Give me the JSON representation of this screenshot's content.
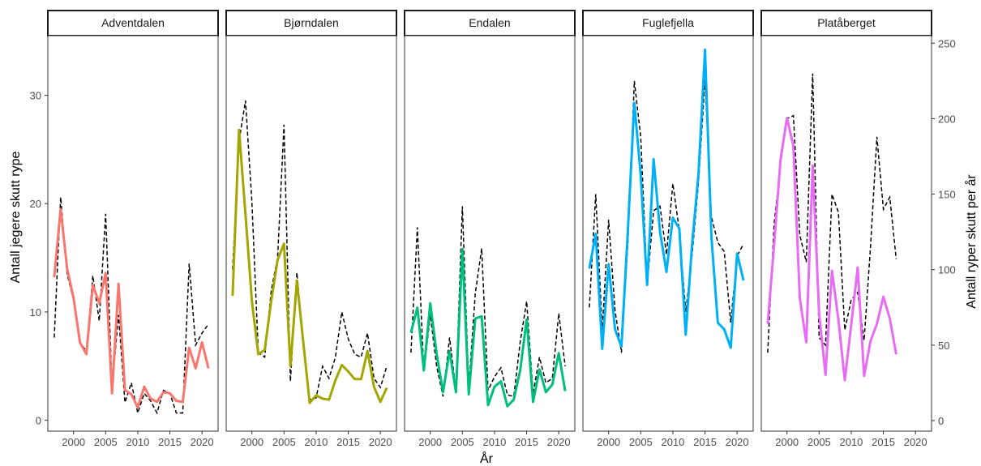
{
  "chart_data": {
    "type": "line",
    "xlabel": "År",
    "ylabel_left": "Antall jegere skutt rype",
    "ylabel_right": "Antall ryper skutt per år",
    "xlim": [
      1996,
      2022.5
    ],
    "x_ticks": [
      2000,
      2005,
      2010,
      2015,
      2020
    ],
    "ylim_left": [
      -1,
      35.5
    ],
    "y_ticks_left": [
      0,
      10,
      20,
      30
    ],
    "ylim_right": [
      -7,
      255
    ],
    "y_ticks_right": [
      0,
      50,
      100,
      150,
      200,
      250
    ],
    "legend": "none",
    "grid": false,
    "line_series_axis": "left",
    "dashed_series_axis": "right",
    "panels": [
      {
        "name": "Adventdalen",
        "color": "#F8766D",
        "hunters": {
          "x": [
            1997,
            1998,
            1999,
            2000,
            2001,
            2002,
            2003,
            2004,
            2005,
            2006,
            2007,
            2008,
            2009,
            2010,
            2011,
            2012,
            2013,
            2014,
            2015,
            2016,
            2017,
            2018,
            2019,
            2020,
            2021
          ],
          "y": [
            13.2,
            19.5,
            14.0,
            11.3,
            7.2,
            6.1,
            12.5,
            10.8,
            13.6,
            2.5,
            12.6,
            2.8,
            2.4,
            1.2,
            3.1,
            2.0,
            1.7,
            2.6,
            2.5,
            1.8,
            1.7,
            6.7,
            4.8,
            7.2,
            4.8
          ]
        },
        "ryper": {
          "x": [
            1997,
            1998,
            1999,
            2000,
            2001,
            2002,
            2003,
            2004,
            2005,
            2006,
            2007,
            2008,
            2009,
            2010,
            2011,
            2012,
            2013,
            2014,
            2015,
            2016,
            2017,
            2018,
            2019,
            2020,
            2021
          ],
          "y": [
            55,
            148,
            97,
            80,
            52,
            46,
            96,
            66,
            137,
            22,
            70,
            12,
            25,
            5,
            18,
            13,
            5,
            20,
            18,
            5,
            5,
            104,
            50,
            58,
            64
          ]
        }
      },
      {
        "name": "Bjørndalen",
        "color": "#A3A500",
        "hunters": {
          "x": [
            1997,
            1998,
            1999,
            2000,
            2001,
            2002,
            2003,
            2004,
            2005,
            2006,
            2007,
            2008,
            2009,
            2010,
            2011,
            2012,
            2013,
            2014,
            2015,
            2016,
            2017,
            2018,
            2019,
            2020,
            2021
          ],
          "y": [
            11.5,
            26.8,
            19.0,
            11.0,
            6.1,
            6.5,
            11.0,
            14.8,
            16.3,
            5.0,
            12.9,
            7.2,
            1.6,
            2.3,
            2.0,
            1.9,
            3.7,
            5.1,
            4.5,
            3.8,
            3.8,
            6.4,
            3.1,
            1.7,
            3.0
          ]
        },
        "ryper": {
          "x": [
            1997,
            1998,
            1999,
            2000,
            2001,
            2002,
            2003,
            2004,
            2005,
            2006,
            2007,
            2008,
            2009,
            2010,
            2011,
            2012,
            2013,
            2014,
            2015,
            2016,
            2017,
            2018,
            2019,
            2020,
            2021
          ],
          "y": [
            100,
            185,
            212,
            145,
            45,
            42,
            86,
            108,
            196,
            26,
            98,
            52,
            14,
            15,
            36,
            28,
            42,
            72,
            54,
            44,
            42,
            58,
            28,
            22,
            36
          ]
        }
      },
      {
        "name": "Endalen",
        "color": "#00BF7D",
        "hunters": {
          "x": [
            1997,
            1998,
            1999,
            2000,
            2001,
            2002,
            2003,
            2004,
            2005,
            2006,
            2007,
            2008,
            2009,
            2010,
            2011,
            2012,
            2013,
            2014,
            2015,
            2016,
            2017,
            2018,
            2019,
            2020,
            2021
          ],
          "y": [
            8.1,
            10.4,
            4.6,
            10.8,
            6.1,
            2.6,
            6.4,
            2.6,
            15.8,
            2.4,
            9.4,
            9.6,
            1.4,
            3.1,
            3.6,
            1.3,
            1.9,
            4.6,
            9.3,
            1.7,
            4.7,
            2.6,
            3.3,
            6.2,
            2.7
          ]
        },
        "ryper": {
          "x": [
            1997,
            1998,
            1999,
            2000,
            2001,
            2002,
            2003,
            2004,
            2005,
            2006,
            2007,
            2008,
            2009,
            2010,
            2011,
            2012,
            2013,
            2014,
            2015,
            2016,
            2017,
            2018,
            2019,
            2020,
            2021
          ],
          "y": [
            45,
            128,
            32,
            70,
            36,
            16,
            55,
            20,
            142,
            22,
            84,
            114,
            20,
            29,
            35,
            17,
            16,
            52,
            79,
            18,
            42,
            25,
            28,
            71,
            36
          ]
        }
      },
      {
        "name": "Fuglefjella",
        "color": "#00B0F6",
        "hunters": {
          "x": [
            1997,
            1998,
            1999,
            2000,
            2001,
            2002,
            2003,
            2004,
            2005,
            2006,
            2007,
            2008,
            2009,
            2010,
            2011,
            2012,
            2013,
            2014,
            2015,
            2016,
            2017,
            2018,
            2019,
            2020,
            2021
          ],
          "y": [
            14.0,
            17.2,
            6.6,
            14.4,
            8.4,
            6.8,
            17.6,
            29.3,
            22.6,
            12.5,
            24.1,
            17.4,
            13.7,
            18.7,
            17.7,
            7.9,
            16.3,
            22.8,
            34.2,
            16.9,
            9.0,
            8.4,
            6.7,
            15.4,
            12.9
          ]
        },
        "ryper": {
          "x": [
            1997,
            1998,
            1999,
            2000,
            2001,
            2002,
            2003,
            2004,
            2005,
            2006,
            2007,
            2008,
            2009,
            2010,
            2011,
            2012,
            2013,
            2014,
            2015,
            2016,
            2017,
            2018,
            2019,
            2020,
            2021
          ],
          "y": [
            75,
            150,
            60,
            133,
            73,
            45,
            118,
            225,
            188,
            90,
            139,
            142,
            110,
            157,
            126,
            72,
            110,
            158,
            226,
            135,
            118,
            112,
            65,
            109,
            117
          ]
        }
      },
      {
        "name": "Platåberget",
        "color": "#E76BF3",
        "hunters": {
          "x": [
            1997,
            1998,
            1999,
            2000,
            2001,
            2002,
            2003,
            2004,
            2005,
            2006,
            2007,
            2008,
            2009,
            2010,
            2011,
            2012,
            2013,
            2014,
            2015,
            2016,
            2017
          ],
          "y": [
            8.9,
            16.2,
            24.1,
            27.9,
            25.3,
            11.3,
            7.2,
            23.5,
            9.9,
            4.2,
            13.8,
            9.3,
            3.7,
            8.8,
            14.1,
            4.1,
            7.3,
            8.9,
            11.4,
            9.4,
            6.1
          ]
        },
        "ryper": {
          "x": [
            1997,
            1998,
            1999,
            2000,
            2001,
            2002,
            2003,
            2004,
            2005,
            2006,
            2007,
            2008,
            2009,
            2010,
            2011,
            2012,
            2013,
            2014,
            2015,
            2016,
            2017
          ],
          "y": [
            45,
            130,
            170,
            200,
            202,
            123,
            105,
            230,
            55,
            50,
            150,
            138,
            60,
            80,
            85,
            53,
            115,
            188,
            140,
            148,
            107
          ]
        }
      }
    ]
  }
}
